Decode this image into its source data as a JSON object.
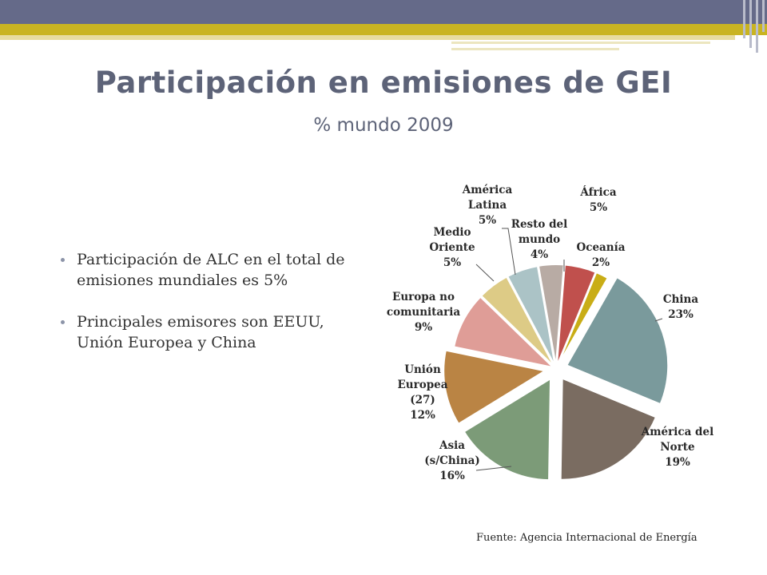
{
  "title": "Participación en emisiones de GEI",
  "subtitle": "% mundo 2009",
  "bullets": [
    "Participación de ALC en el total de emisiones mundiales es 5%",
    "Principales emisores son EEUU, Unión Europea y China"
  ],
  "source": "Fuente: Agencia Internacional de Energía",
  "chart_data": {
    "type": "pie",
    "slices": [
      {
        "label_lines": [
          "África",
          "5%"
        ],
        "value": 5,
        "color": "#c0504d"
      },
      {
        "label_lines": [
          "Oceanía",
          "2%"
        ],
        "value": 2,
        "color": "#c9ad16"
      },
      {
        "label_lines": [
          "China",
          "23%"
        ],
        "value": 23,
        "color": "#7a9a9c"
      },
      {
        "label_lines": [
          "América del",
          "Norte",
          "19%"
        ],
        "value": 19,
        "color": "#7a6c61"
      },
      {
        "label_lines": [
          "Asia",
          "(s/China)",
          "16%"
        ],
        "value": 16,
        "color": "#7c9b78"
      },
      {
        "label_lines": [
          "Unión",
          "Europea",
          "(27)",
          "12%"
        ],
        "value": 12,
        "color": "#ba8444"
      },
      {
        "label_lines": [
          "Europa no",
          "comunitaria",
          "9%"
        ],
        "value": 9,
        "color": "#df9d97"
      },
      {
        "label_lines": [
          "Medio",
          "Oriente",
          "5%"
        ],
        "value": 5,
        "color": "#ddcb86"
      },
      {
        "label_lines": [
          "América",
          "Latina",
          "5%"
        ],
        "value": 5,
        "color": "#abc3c6"
      },
      {
        "label_lines": [
          "Resto del",
          "mundo",
          "4%"
        ],
        "value": 4,
        "color": "#b8aba4"
      }
    ]
  }
}
